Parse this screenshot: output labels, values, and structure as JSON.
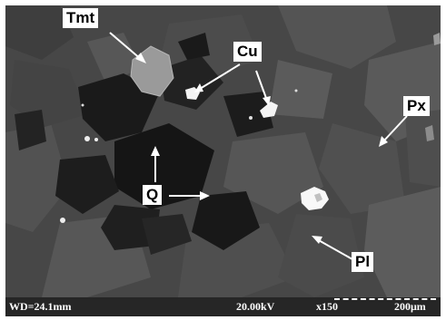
{
  "minerals": {
    "tmt": "Tmt",
    "cu": "Cu",
    "px": "Px",
    "q": "Q",
    "pl": "Pl"
  },
  "footer": {
    "working_distance": "WD=24.1mm",
    "voltage": "20.00kV",
    "magnification": "x150",
    "scale": "200μm"
  },
  "colors": {
    "matrix": "#4a4a4a",
    "dark_phase": "#141414",
    "bright_phase": "#f4f4f4",
    "tmt_phase": "#9a9a9a",
    "arrow": "#ffffff"
  }
}
